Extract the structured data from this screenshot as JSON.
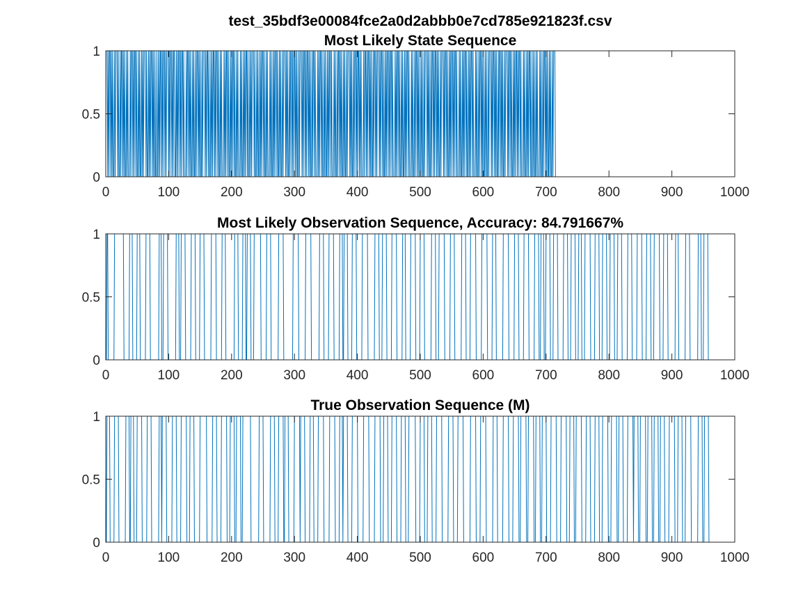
{
  "figure": {
    "suptitle": "test_35bdf3e00084fce2a0d2abbb0e7cd785e921823f.csv"
  },
  "colors": {
    "series": "#0072BD",
    "axis": "#262626"
  },
  "chart_data": [
    {
      "type": "line",
      "title": "Most Likely State Sequence",
      "xlabel": "",
      "ylabel": "",
      "xlim": [
        0,
        1000
      ],
      "ylim": [
        0,
        1
      ],
      "xticks": [
        "0",
        "100",
        "200",
        "300",
        "400",
        "500",
        "600",
        "700",
        "800",
        "900",
        "1000"
      ],
      "yticks": [
        "0",
        "0.5",
        "1"
      ],
      "grid": false,
      "n_points": 960,
      "series": [
        {
          "values_encoding": "run-lengths (alternating 1/0 starting with 1)",
          "runs": [
            2,
            1,
            1,
            1,
            2,
            1,
            1,
            1,
            1,
            2,
            1,
            1,
            3,
            1,
            1,
            2,
            1,
            1,
            2,
            1,
            1,
            1,
            1,
            2,
            1,
            1,
            1,
            3,
            1,
            1,
            2,
            1,
            1,
            1,
            2,
            1,
            1,
            2,
            1,
            1,
            1,
            2,
            1,
            1,
            1,
            1,
            3,
            1,
            1,
            2,
            1,
            1,
            1,
            1,
            2,
            1,
            1,
            1,
            1,
            2,
            1,
            2,
            1,
            1,
            1,
            1,
            2,
            1,
            1,
            1,
            2,
            1,
            1,
            1,
            3,
            1,
            1,
            1,
            2,
            1,
            1,
            1,
            2,
            2,
            1,
            1,
            1,
            1,
            2,
            1,
            1,
            1,
            2,
            1,
            1,
            3,
            1,
            1,
            2,
            1,
            1,
            1,
            1,
            2,
            1,
            1,
            1,
            2,
            1,
            1,
            2,
            1,
            1,
            1,
            1,
            2,
            1,
            1,
            3,
            1,
            1,
            1,
            2,
            1,
            1,
            2,
            1,
            1,
            1,
            1,
            2,
            1,
            1,
            1,
            2,
            1,
            1,
            2,
            1,
            1,
            1,
            3,
            1,
            1,
            1,
            1,
            2,
            1,
            1,
            2,
            1,
            1,
            1,
            1,
            2,
            1,
            1,
            2,
            1,
            1,
            1,
            3,
            1,
            1,
            1,
            2,
            1,
            1,
            1,
            1,
            2,
            1,
            1,
            2,
            1,
            1,
            1,
            1,
            3,
            1,
            1,
            2,
            1,
            1,
            1,
            2,
            1,
            1,
            1,
            1,
            2,
            1,
            1,
            2,
            1,
            1,
            1,
            3,
            1,
            1,
            1,
            2,
            1,
            1,
            1,
            1,
            2,
            1,
            1,
            2,
            1,
            1,
            1,
            2,
            1,
            1,
            3,
            1,
            1,
            1,
            1,
            2,
            1,
            1,
            2,
            1,
            1,
            1,
            2,
            1,
            1,
            1,
            1,
            2,
            1,
            1,
            3,
            1,
            1,
            1,
            2,
            1,
            1,
            1,
            2,
            1,
            1,
            1,
            1,
            2,
            1,
            1,
            2,
            1,
            1,
            3,
            1,
            1,
            1,
            1,
            2,
            1,
            1,
            2,
            1,
            1,
            1,
            2,
            1,
            1,
            1,
            1,
            2,
            1,
            1,
            3,
            1,
            1,
            1,
            2,
            1,
            1,
            2,
            1,
            1,
            1,
            1,
            2,
            1,
            1,
            1,
            2,
            1,
            1,
            3,
            1,
            1,
            1,
            1,
            2,
            1,
            1,
            2,
            1,
            1,
            1,
            2,
            1,
            1,
            1,
            1,
            3,
            1,
            1,
            2,
            1,
            1,
            1,
            2,
            1,
            1,
            1,
            1,
            2,
            1,
            1,
            2,
            1,
            1,
            1,
            3,
            1,
            1,
            1,
            2,
            1,
            1,
            2,
            1,
            1,
            1,
            1,
            2,
            1,
            1,
            1,
            2,
            1,
            1,
            3,
            1,
            1,
            1,
            1,
            2,
            1,
            1,
            2,
            1,
            1,
            1,
            2,
            1,
            1,
            1,
            1,
            2,
            1,
            1,
            3,
            1,
            1,
            1,
            2,
            1,
            1,
            2,
            1,
            1,
            1,
            1,
            2,
            1,
            1,
            1,
            2,
            1,
            1,
            3,
            1,
            1,
            1,
            1,
            2,
            1,
            1,
            2,
            1,
            1,
            1,
            2,
            1,
            1,
            1,
            1,
            2,
            1,
            1,
            3,
            1,
            1,
            1,
            2,
            1,
            1,
            2,
            1,
            1,
            1,
            1,
            2,
            1,
            1,
            1,
            2,
            1,
            1,
            3,
            1,
            1,
            1,
            2,
            1,
            1,
            1,
            1,
            2,
            1,
            1,
            2,
            1,
            1,
            1,
            1,
            2,
            1,
            1,
            3,
            1,
            1,
            1,
            2,
            1,
            1,
            2,
            1,
            1,
            1,
            1,
            2,
            1,
            1,
            1,
            2,
            1,
            1,
            3,
            1,
            1,
            1,
            2,
            1,
            1,
            1,
            1,
            2,
            1,
            1,
            2,
            1,
            1,
            1,
            1,
            2,
            1,
            1,
            3,
            1,
            1,
            1,
            2,
            1,
            1,
            2,
            1,
            1,
            1,
            1,
            2,
            1,
            1,
            1,
            2,
            1,
            1,
            3,
            1,
            1,
            1,
            2,
            1,
            1,
            1,
            1,
            2,
            1,
            1,
            2,
            1,
            1,
            1,
            2,
            1,
            1,
            1,
            3,
            1,
            1,
            1,
            2,
            1,
            1,
            2,
            1,
            1,
            1,
            1,
            2,
            1,
            1,
            1,
            2,
            1,
            1,
            3
          ]
        }
      ]
    },
    {
      "type": "line",
      "title": "Most Likely Observation Sequence, Accuracy: 84.791667%",
      "xlabel": "",
      "ylabel": "",
      "xlim": [
        0,
        1000
      ],
      "ylim": [
        0,
        1
      ],
      "xticks": [
        "0",
        "100",
        "200",
        "300",
        "400",
        "500",
        "600",
        "700",
        "800",
        "900",
        "1000"
      ],
      "yticks": [
        "0",
        "0.5",
        "1"
      ],
      "grid": false,
      "n_points": 960,
      "series": [
        {
          "values_encoding": "high intervals [start, end] where value = 1, else 0",
          "high": [
            [
              2,
              3
            ],
            [
              14,
              28
            ],
            [
              38,
              42
            ],
            [
              50,
              54
            ],
            [
              64,
              70
            ],
            [
              85,
              88
            ],
            [
              92,
              98
            ],
            [
              112,
              116
            ],
            [
              120,
              126
            ],
            [
              136,
              142
            ],
            [
              150,
              156
            ],
            [
              168,
              175
            ],
            [
              185,
              190
            ],
            [
              205,
              210
            ],
            [
              218,
              222
            ],
            [
              225,
              230
            ],
            [
              236,
              246
            ],
            [
              256,
              262
            ],
            [
              275,
              282
            ],
            [
              298,
              306
            ],
            [
              318,
              326
            ],
            [
              340,
              346
            ],
            [
              355,
              362
            ],
            [
              372,
              376
            ],
            [
              379,
              384
            ],
            [
              392,
              398
            ],
            [
              408,
              416
            ],
            [
              428,
              434
            ],
            [
              440,
              446
            ],
            [
              455,
              462
            ],
            [
              472,
              476
            ],
            [
              485,
              492
            ],
            [
              500,
              506
            ],
            [
              518,
              524
            ],
            [
              530,
              538
            ],
            [
              548,
              554
            ],
            [
              566,
              572
            ],
            [
              580,
              588
            ],
            [
              598,
              606
            ],
            [
              615,
              620
            ],
            [
              632,
              640
            ],
            [
              650,
              656
            ],
            [
              665,
              672
            ],
            [
              682,
              688
            ],
            [
              692,
              696
            ],
            [
              700,
              706
            ],
            [
              712,
              718
            ],
            [
              728,
              734
            ],
            [
              740,
              746
            ],
            [
              752,
              756
            ],
            [
              762,
              770
            ],
            [
              778,
              784
            ],
            [
              790,
              796
            ],
            [
              802,
              808
            ],
            [
              814,
              820
            ],
            [
              830,
              836
            ],
            [
              845,
              852
            ],
            [
              860,
              866
            ],
            [
              872,
              880
            ],
            [
              887,
              893
            ],
            [
              906,
              910
            ],
            [
              922,
              928
            ],
            [
              942,
              946
            ],
            [
              951,
              957
            ]
          ]
        }
      ]
    },
    {
      "type": "line",
      "title": "True Observation Sequence (M)",
      "xlabel": "",
      "ylabel": "",
      "xlim": [
        0,
        1000
      ],
      "ylim": [
        0,
        1
      ],
      "xticks": [
        "0",
        "100",
        "200",
        "300",
        "400",
        "500",
        "600",
        "700",
        "800",
        "900",
        "1000"
      ],
      "yticks": [
        "0",
        "0.5",
        "1"
      ],
      "grid": false,
      "n_points": 960,
      "series": [
        {
          "values_encoding": "high intervals [start, end] where value = 1, else 0",
          "high": [
            [
              2,
              6
            ],
            [
              14,
              20
            ],
            [
              32,
              37
            ],
            [
              40,
              44
            ],
            [
              50,
              57
            ],
            [
              66,
              72
            ],
            [
              85,
              88
            ],
            [
              90,
              96
            ],
            [
              106,
              112
            ],
            [
              120,
              128
            ],
            [
              134,
              140
            ],
            [
              150,
              160
            ],
            [
              170,
              176
            ],
            [
              184,
              192
            ],
            [
              198,
              204
            ],
            [
              208,
              214
            ],
            [
              218,
              230
            ],
            [
              244,
              250
            ],
            [
              262,
              268
            ],
            [
              275,
              282
            ],
            [
              285,
              290
            ],
            [
              300,
              308
            ],
            [
              310,
              316
            ],
            [
              325,
              330
            ],
            [
              338,
              346
            ],
            [
              356,
              364
            ],
            [
              372,
              376
            ],
            [
              378,
              384
            ],
            [
              392,
              400
            ],
            [
              410,
              418
            ],
            [
              428,
              436
            ],
            [
              442,
              448
            ],
            [
              455,
              462
            ],
            [
              470,
              476
            ],
            [
              482,
              492
            ],
            [
              500,
              506
            ],
            [
              512,
              518
            ],
            [
              526,
              534
            ],
            [
              545,
              552
            ],
            [
              560,
              568
            ],
            [
              580,
              588
            ],
            [
              596,
              604
            ],
            [
              616,
              622
            ],
            [
              632,
              640
            ],
            [
              648,
              656
            ],
            [
              660,
              668
            ],
            [
              672,
              680
            ],
            [
              684,
              690
            ],
            [
              694,
              700
            ],
            [
              708,
              716
            ],
            [
              724,
              732
            ],
            [
              738,
              744
            ],
            [
              748,
              756
            ],
            [
              764,
              770
            ],
            [
              778,
              784
            ],
            [
              790,
              798
            ],
            [
              804,
              812
            ],
            [
              816,
              822
            ],
            [
              830,
              838
            ],
            [
              840,
              846
            ],
            [
              850,
              858
            ],
            [
              862,
              868
            ],
            [
              872,
              878
            ],
            [
              882,
              888
            ],
            [
              896,
              904
            ],
            [
              910,
              916
            ],
            [
              922,
              930
            ],
            [
              942,
              948
            ],
            [
              952,
              958
            ]
          ]
        }
      ]
    }
  ]
}
